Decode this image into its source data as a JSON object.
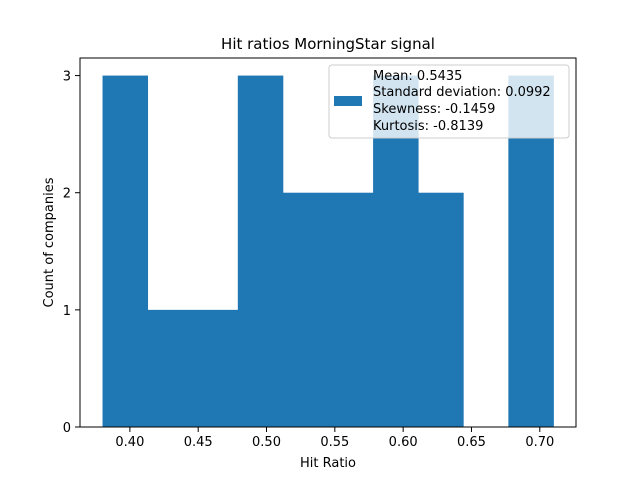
{
  "chart_data": {
    "type": "bar",
    "title": "Hit ratios MorningStar signal",
    "xlabel": "Hit Ratio",
    "ylabel": "Count of companies",
    "bin_edges": [
      0.38,
      0.413,
      0.446,
      0.479,
      0.512,
      0.545,
      0.578,
      0.611,
      0.644,
      0.677,
      0.71
    ],
    "values": [
      3,
      1,
      1,
      3,
      2,
      2,
      3,
      2,
      0,
      3
    ],
    "xlim": [
      0.3635,
      0.7265
    ],
    "ylim": [
      0,
      3.15
    ],
    "xticks": [
      "0.40",
      "0.45",
      "0.50",
      "0.55",
      "0.60",
      "0.65",
      "0.70"
    ],
    "xtick_values": [
      0.4,
      0.45,
      0.5,
      0.55,
      0.6,
      0.65,
      0.7
    ],
    "yticks": [
      "0",
      "1",
      "2",
      "3"
    ],
    "ytick_values": [
      0,
      1,
      2,
      3
    ],
    "bar_color": "#1f77b4",
    "grid": false,
    "legend": {
      "placement": "top-right",
      "lines": [
        "Mean: 0.5435",
        "Standard deviation: 0.0992",
        "Skewness: -0.1459",
        "Kurtosis: -0.8139"
      ]
    }
  }
}
